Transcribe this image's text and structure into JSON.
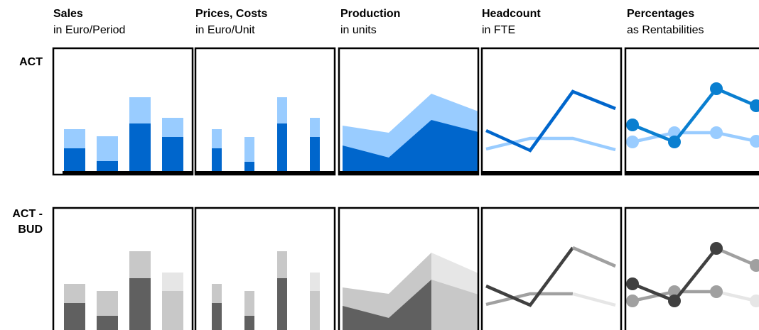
{
  "columns": [
    {
      "title": "Sales",
      "subtitle": "in Euro/Period"
    },
    {
      "title": "Prices, Costs",
      "subtitle": "in Euro/Unit"
    },
    {
      "title": "Production",
      "subtitle": "in units"
    },
    {
      "title": "Headcount",
      "subtitle": "in FTE"
    },
    {
      "title": "Percentages",
      "subtitle": "as Rentabilities"
    }
  ],
  "rows": [
    {
      "lines": [
        "ACT"
      ]
    },
    {
      "lines": [
        "ACT -",
        "BUD"
      ]
    }
  ]
}
